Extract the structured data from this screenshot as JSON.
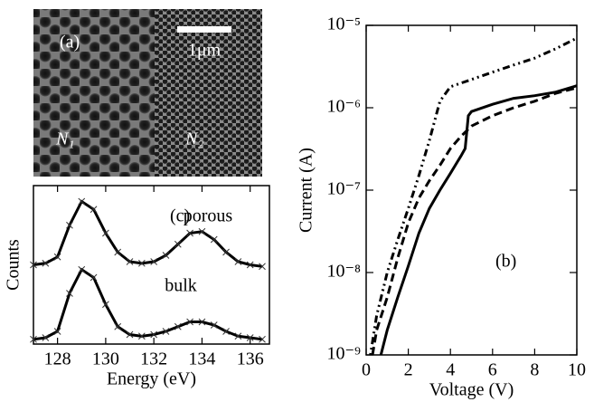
{
  "image_panel": {
    "panel_label": "(a)",
    "scale_bar": "1μm",
    "regions": [
      "N₁",
      "N₂"
    ]
  },
  "chart_data": [
    {
      "type": "line",
      "panel_label": "(c)",
      "xlabel": "Energy (eV)",
      "ylabel": "Counts",
      "marker": "x",
      "x": [
        127,
        127.5,
        128,
        128.5,
        129,
        129.5,
        130,
        130.5,
        131,
        131.5,
        132,
        132.5,
        133,
        133.5,
        134,
        134.5,
        135,
        135.5,
        136,
        136.5
      ],
      "series": [
        {
          "name": "porous",
          "color": "#000000",
          "style": "solid",
          "values": [
            0.5,
            0.51,
            0.55,
            0.75,
            0.9,
            0.85,
            0.7,
            0.58,
            0.52,
            0.51,
            0.52,
            0.56,
            0.63,
            0.7,
            0.71,
            0.66,
            0.58,
            0.52,
            0.5,
            0.49
          ]
        },
        {
          "name": "bulk",
          "color": "#000000",
          "style": "solid",
          "values": [
            0.03,
            0.04,
            0.08,
            0.32,
            0.47,
            0.42,
            0.25,
            0.11,
            0.06,
            0.05,
            0.06,
            0.08,
            0.11,
            0.14,
            0.14,
            0.12,
            0.08,
            0.05,
            0.04,
            0.03
          ]
        }
      ],
      "xlim": [
        127,
        136.8
      ],
      "ylim": [
        0,
        1
      ],
      "xticks": [
        128,
        130,
        132,
        134,
        136
      ]
    },
    {
      "type": "line",
      "panel_label": "(b)",
      "xlabel": "Voltage (V)",
      "ylabel": "Current (A)",
      "log_y": true,
      "series": [
        {
          "color": "#000000",
          "style": "solid",
          "x": [
            0.7,
            1,
            1.5,
            2,
            2.5,
            3,
            3.5,
            4,
            4.5,
            4.7,
            4.85,
            5,
            6,
            7,
            8,
            9,
            10
          ],
          "values": [
            1e-09,
            2e-09,
            5e-09,
            1.2e-08,
            3e-08,
            6e-08,
            1e-07,
            1.6e-07,
            2.6e-07,
            3.2e-07,
            8e-07,
            9e-07,
            1.1e-06,
            1.3e-06,
            1.4e-06,
            1.55e-06,
            1.85e-06
          ]
        },
        {
          "color": "#000000",
          "style": "dashed",
          "x": [
            0.3,
            0.5,
            1,
            1.5,
            2,
            2.5,
            3,
            3.5,
            4,
            4.5,
            5,
            6,
            7,
            8,
            9,
            10
          ],
          "values": [
            1e-09,
            2e-09,
            5e-09,
            1.5e-08,
            4e-08,
            8e-08,
            1.3e-07,
            2e-07,
            3.2e-07,
            4.5e-07,
            6e-07,
            8e-07,
            1e-06,
            1.2e-06,
            1.5e-06,
            1.75e-06
          ]
        },
        {
          "color": "#000000",
          "style": "dotted",
          "x": [
            0.2,
            0.5,
            1,
            1.5,
            2,
            2.5,
            3,
            3.5,
            4,
            5,
            6,
            7,
            8,
            9,
            10
          ],
          "values": [
            1e-09,
            3e-09,
            1e-08,
            2.5e-08,
            6e-08,
            1.5e-07,
            4e-07,
            1.2e-06,
            1.8e-06,
            2.2e-06,
            2.7e-06,
            3.3e-06,
            4e-06,
            5.2e-06,
            7e-06
          ]
        }
      ],
      "xlim": [
        0,
        10
      ],
      "ylim": [
        1e-09,
        1e-05
      ],
      "xticks": [
        0,
        2,
        4,
        6,
        8,
        10
      ],
      "yticks": [
        {
          "value": 1e-09,
          "label": "10⁻⁹"
        },
        {
          "value": 1e-08,
          "label": "10⁻⁸"
        },
        {
          "value": 1e-07,
          "label": "10⁻⁷"
        },
        {
          "value": 1e-06,
          "label": "10⁻⁶"
        },
        {
          "value": 1e-05,
          "label": "10⁻⁵"
        }
      ]
    }
  ]
}
